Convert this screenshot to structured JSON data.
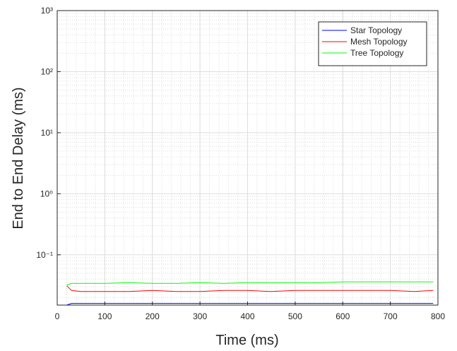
{
  "chart_data": {
    "type": "line",
    "x_label": "Time (ms)",
    "y_label": "End to End Delay (ms)",
    "x": [
      20,
      30,
      50,
      100,
      150,
      200,
      250,
      300,
      350,
      400,
      450,
      500,
      550,
      600,
      650,
      700,
      750,
      790
    ],
    "series": [
      {
        "name": "Star Topology",
        "color": "#0000ff",
        "values": [
          0.015,
          0.016,
          0.016,
          0.016,
          0.016,
          0.016,
          0.016,
          0.016,
          0.016,
          0.016,
          0.016,
          0.016,
          0.016,
          0.016,
          0.016,
          0.016,
          0.016,
          0.016
        ]
      },
      {
        "name": "Mesh Topology",
        "color": "#ff0000",
        "values": [
          0.031,
          0.026,
          0.025,
          0.025,
          0.025,
          0.026,
          0.025,
          0.025,
          0.026,
          0.026,
          0.025,
          0.026,
          0.026,
          0.026,
          0.026,
          0.026,
          0.025,
          0.026
        ]
      },
      {
        "name": "Tree Topology",
        "color": "#00ff00",
        "values": [
          0.032,
          0.034,
          0.034,
          0.034,
          0.035,
          0.034,
          0.034,
          0.035,
          0.034,
          0.035,
          0.035,
          0.035,
          0.035,
          0.036,
          0.036,
          0.036,
          0.036,
          0.036
        ]
      }
    ],
    "xlim": [
      0,
      800
    ],
    "xticks": [
      0,
      100,
      200,
      300,
      400,
      500,
      600,
      700,
      800
    ],
    "ylim": [
      0.015,
      1000
    ],
    "y_scale": "log",
    "yticks": [
      {
        "value": 0.1,
        "label": "10⁻¹"
      },
      {
        "value": 1,
        "label": "10⁰"
      },
      {
        "value": 10,
        "label": "10¹"
      },
      {
        "value": 100,
        "label": "10²"
      },
      {
        "value": 1000,
        "label": "10³"
      }
    ],
    "grid": true,
    "minor_grid": true,
    "legend": "northeast"
  }
}
